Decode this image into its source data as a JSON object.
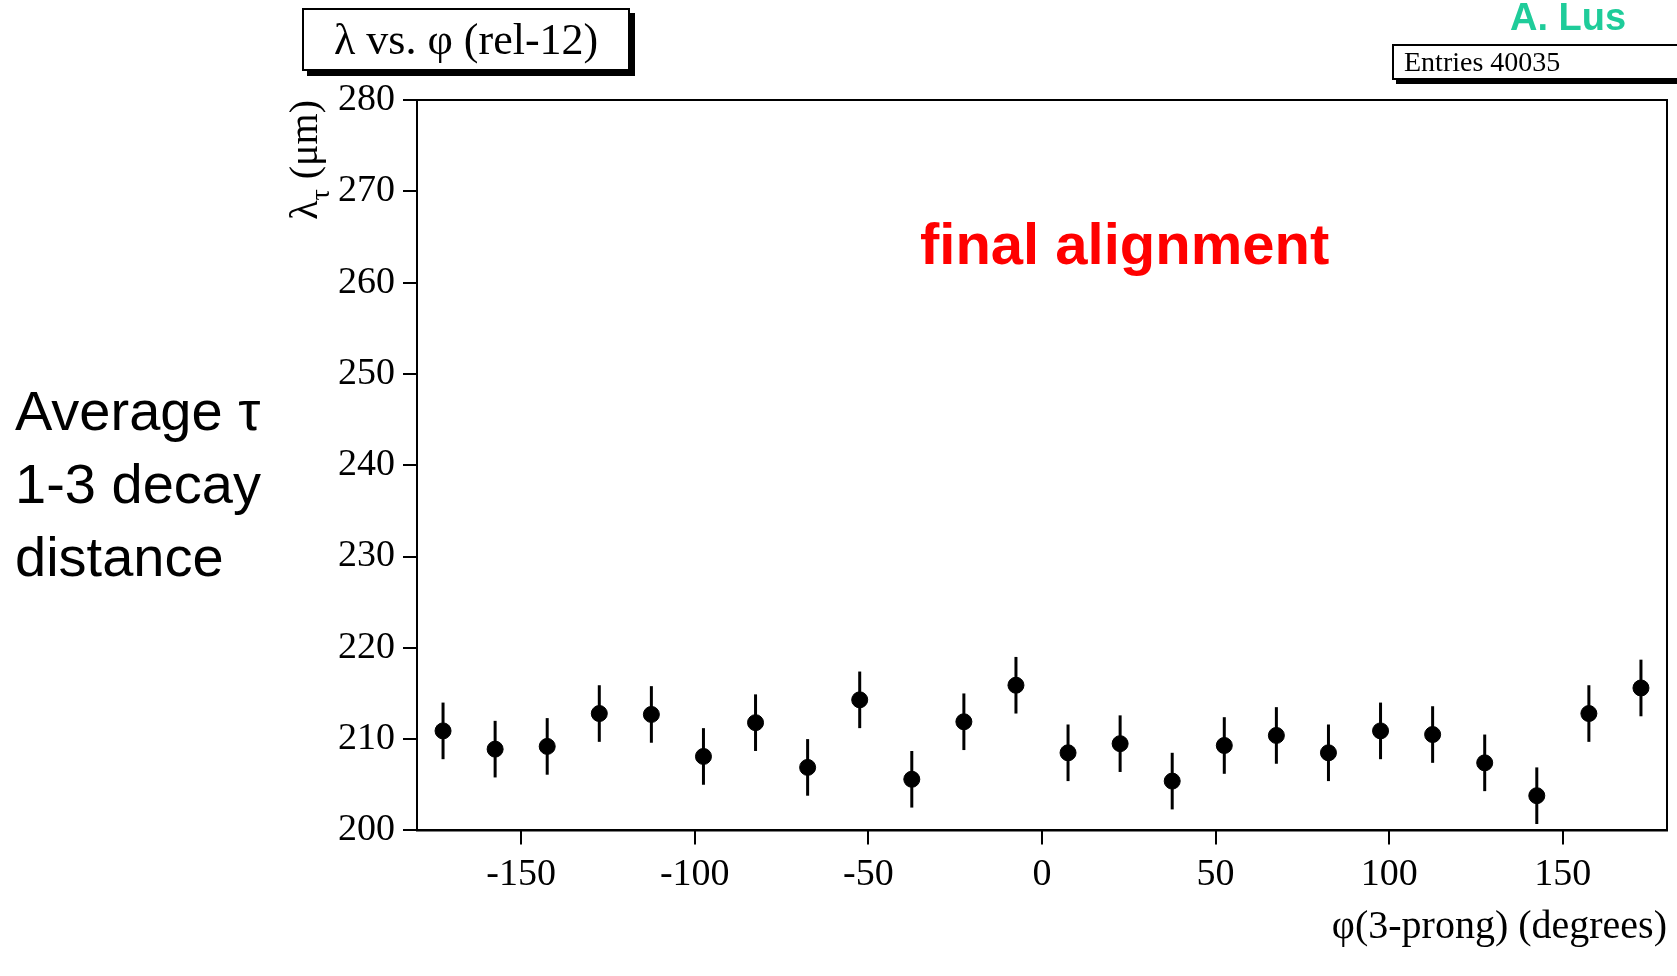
{
  "chart_data": {
    "type": "scatter",
    "title": "λ vs. φ (rel-12)",
    "xlabel": "φ(3-prong) (degrees)",
    "ylabel": "λ$_{τ}$ (μm)",
    "x": [
      -172.5,
      -157.5,
      -142.5,
      -127.5,
      -112.5,
      -97.5,
      -82.5,
      -67.5,
      -52.5,
      -37.5,
      -22.5,
      -7.5,
      7.5,
      22.5,
      37.5,
      52.5,
      67.5,
      82.5,
      97.5,
      112.5,
      127.5,
      142.5,
      157.5,
      172.5
    ],
    "series": [
      {
        "color": "#000000",
        "values": [
          210.9,
          208.9,
          209.2,
          212.8,
          212.7,
          208.1,
          211.8,
          206.9,
          214.3,
          205.6,
          211.9,
          215.9,
          208.5,
          209.5,
          205.4,
          209.3,
          210.4,
          208.5,
          210.9,
          210.5,
          207.4,
          203.8,
          212.8,
          215.6
        ],
        "errors": [
          3.1,
          3.1,
          3.1,
          3.1,
          3.1,
          3.1,
          3.1,
          3.1,
          3.1,
          3.1,
          3.1,
          3.1,
          3.1,
          3.1,
          3.1,
          3.1,
          3.1,
          3.1,
          3.1,
          3.1,
          3.1,
          3.1,
          3.1,
          3.1
        ]
      }
    ],
    "xlim": [
      -180,
      180
    ],
    "xticks": [
      -150,
      -100,
      -50,
      0,
      50,
      100,
      150
    ],
    "ylim": [
      200,
      280
    ],
    "yticks": [
      200,
      210,
      220,
      230,
      240,
      250,
      260,
      270,
      280
    ],
    "grid": false,
    "legend": false,
    "marker": "circle",
    "annotations": [
      "final alignment",
      "Entries 40035",
      "Average τ 1-3 decay distance",
      "A. Lus"
    ]
  }
}
